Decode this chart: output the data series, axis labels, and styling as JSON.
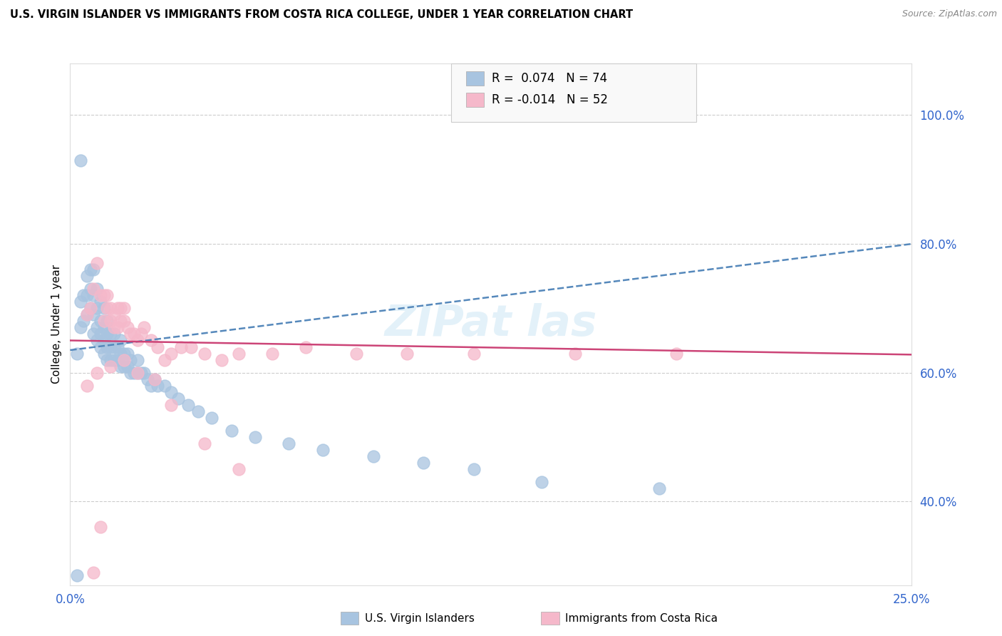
{
  "title": "U.S. VIRGIN ISLANDER VS IMMIGRANTS FROM COSTA RICA COLLEGE, UNDER 1 YEAR CORRELATION CHART",
  "source": "Source: ZipAtlas.com",
  "ylabel": "College, Under 1 year",
  "xlim": [
    0.0,
    0.25
  ],
  "ylim": [
    0.27,
    1.08
  ],
  "ytick_vals": [
    0.4,
    0.6,
    0.8,
    1.0
  ],
  "ytick_labels": [
    "40.0%",
    "60.0%",
    "80.0%",
    "100.0%"
  ],
  "xtick_vals": [
    0.0,
    0.05,
    0.1,
    0.15,
    0.2,
    0.25
  ],
  "xtick_labels": [
    "0.0%",
    "",
    "",
    "",
    "",
    "25.0%"
  ],
  "blue_color": "#a8c4e0",
  "pink_color": "#f5b8ca",
  "blue_line_color": "#5588bb",
  "pink_line_color": "#cc4477",
  "tick_color": "#3366cc",
  "blue_line_y0": 0.635,
  "blue_line_y1": 0.8,
  "pink_line_y0": 0.65,
  "pink_line_y1": 0.628,
  "watermark": "ZIPat las",
  "legend_R_blue": "0.074",
  "legend_N_blue": "74",
  "legend_R_pink": "-0.014",
  "legend_N_pink": "52",
  "blue_x": [
    0.002,
    0.003,
    0.003,
    0.004,
    0.004,
    0.005,
    0.005,
    0.005,
    0.006,
    0.006,
    0.006,
    0.007,
    0.007,
    0.007,
    0.007,
    0.008,
    0.008,
    0.008,
    0.008,
    0.009,
    0.009,
    0.009,
    0.009,
    0.01,
    0.01,
    0.01,
    0.01,
    0.011,
    0.011,
    0.011,
    0.011,
    0.012,
    0.012,
    0.012,
    0.013,
    0.013,
    0.013,
    0.014,
    0.014,
    0.015,
    0.015,
    0.015,
    0.016,
    0.016,
    0.017,
    0.017,
    0.018,
    0.018,
    0.019,
    0.02,
    0.02,
    0.021,
    0.022,
    0.023,
    0.024,
    0.025,
    0.026,
    0.028,
    0.03,
    0.032,
    0.035,
    0.038,
    0.042,
    0.048,
    0.055,
    0.065,
    0.075,
    0.09,
    0.105,
    0.12,
    0.14,
    0.175,
    0.003,
    0.002
  ],
  "blue_y": [
    0.63,
    0.67,
    0.71,
    0.68,
    0.72,
    0.69,
    0.72,
    0.75,
    0.7,
    0.73,
    0.76,
    0.66,
    0.69,
    0.72,
    0.76,
    0.65,
    0.67,
    0.7,
    0.73,
    0.64,
    0.66,
    0.68,
    0.71,
    0.63,
    0.65,
    0.67,
    0.7,
    0.62,
    0.64,
    0.66,
    0.68,
    0.62,
    0.64,
    0.66,
    0.62,
    0.64,
    0.66,
    0.62,
    0.64,
    0.61,
    0.63,
    0.65,
    0.61,
    0.63,
    0.61,
    0.63,
    0.6,
    0.62,
    0.6,
    0.6,
    0.62,
    0.6,
    0.6,
    0.59,
    0.58,
    0.59,
    0.58,
    0.58,
    0.57,
    0.56,
    0.55,
    0.54,
    0.53,
    0.51,
    0.5,
    0.49,
    0.48,
    0.47,
    0.46,
    0.45,
    0.43,
    0.42,
    0.93,
    0.285
  ],
  "pink_x": [
    0.005,
    0.006,
    0.007,
    0.008,
    0.009,
    0.01,
    0.01,
    0.011,
    0.011,
    0.012,
    0.012,
    0.013,
    0.013,
    0.014,
    0.014,
    0.015,
    0.015,
    0.016,
    0.016,
    0.017,
    0.018,
    0.019,
    0.02,
    0.021,
    0.022,
    0.024,
    0.026,
    0.028,
    0.03,
    0.033,
    0.036,
    0.04,
    0.045,
    0.05,
    0.06,
    0.07,
    0.085,
    0.1,
    0.12,
    0.15,
    0.18,
    0.005,
    0.008,
    0.012,
    0.016,
    0.02,
    0.025,
    0.03,
    0.04,
    0.05,
    0.009,
    0.007
  ],
  "pink_y": [
    0.69,
    0.7,
    0.73,
    0.77,
    0.72,
    0.72,
    0.68,
    0.7,
    0.72,
    0.68,
    0.7,
    0.67,
    0.69,
    0.67,
    0.7,
    0.68,
    0.7,
    0.7,
    0.68,
    0.67,
    0.66,
    0.66,
    0.65,
    0.66,
    0.67,
    0.65,
    0.64,
    0.62,
    0.63,
    0.64,
    0.64,
    0.63,
    0.62,
    0.63,
    0.63,
    0.64,
    0.63,
    0.63,
    0.63,
    0.63,
    0.63,
    0.58,
    0.6,
    0.61,
    0.62,
    0.6,
    0.59,
    0.55,
    0.49,
    0.45,
    0.36,
    0.29
  ]
}
